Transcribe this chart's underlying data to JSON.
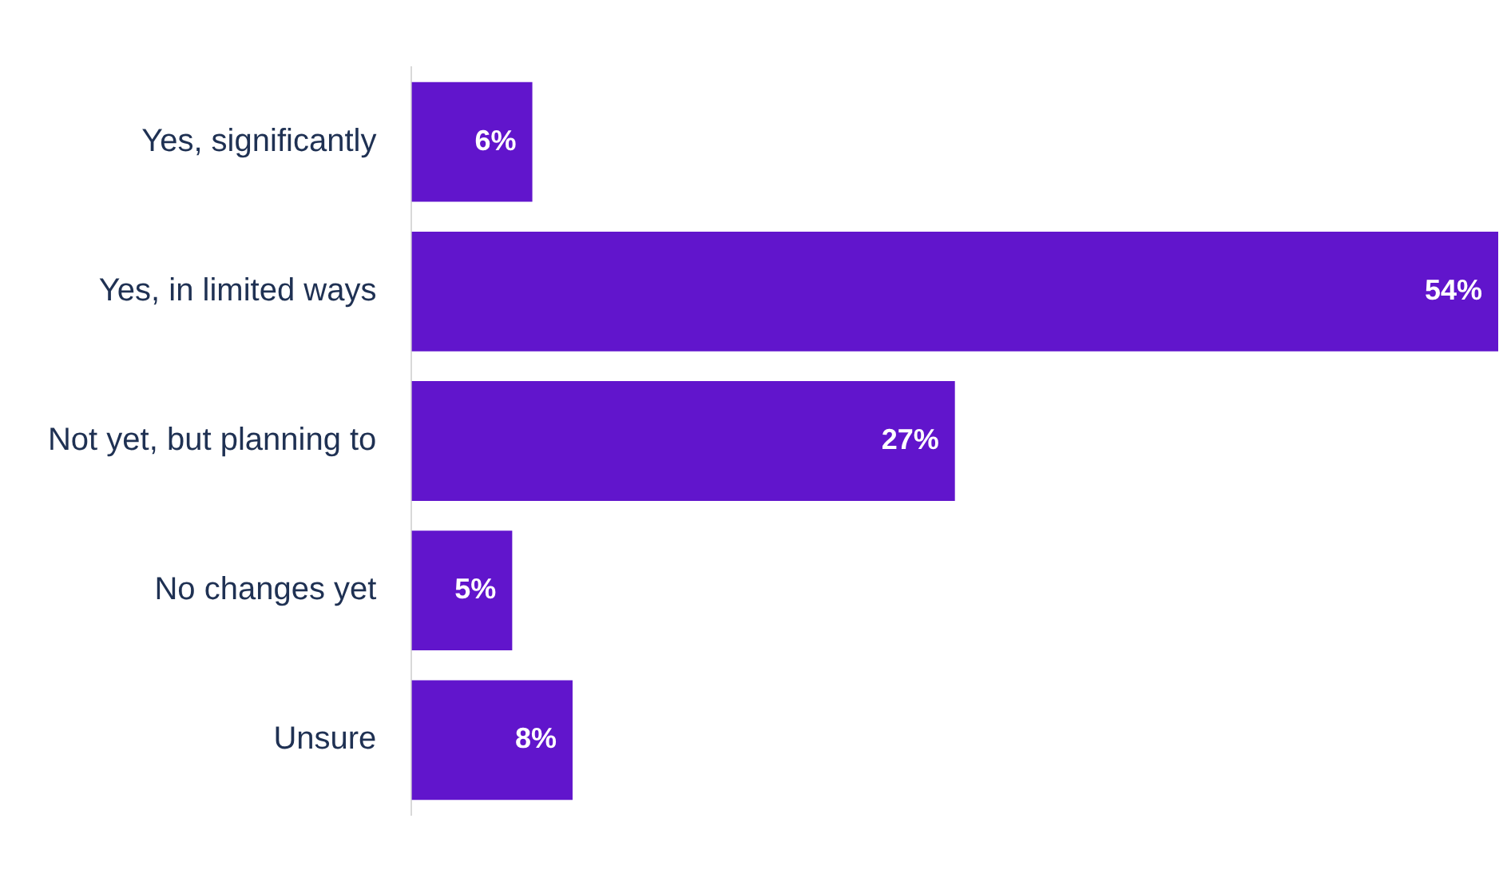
{
  "chart_data": {
    "type": "bar",
    "orientation": "horizontal",
    "categories": [
      "Yes, significantly",
      "Yes, in limited ways",
      "Not yet, but planning to",
      "No changes yet",
      "Unsure"
    ],
    "values": [
      6,
      54,
      27,
      5,
      8
    ],
    "value_labels": [
      "6%",
      "54%",
      "27%",
      "5%",
      "8%"
    ],
    "color": "#6115cc",
    "tick_labels": "y",
    "grid": false,
    "legend": false
  }
}
